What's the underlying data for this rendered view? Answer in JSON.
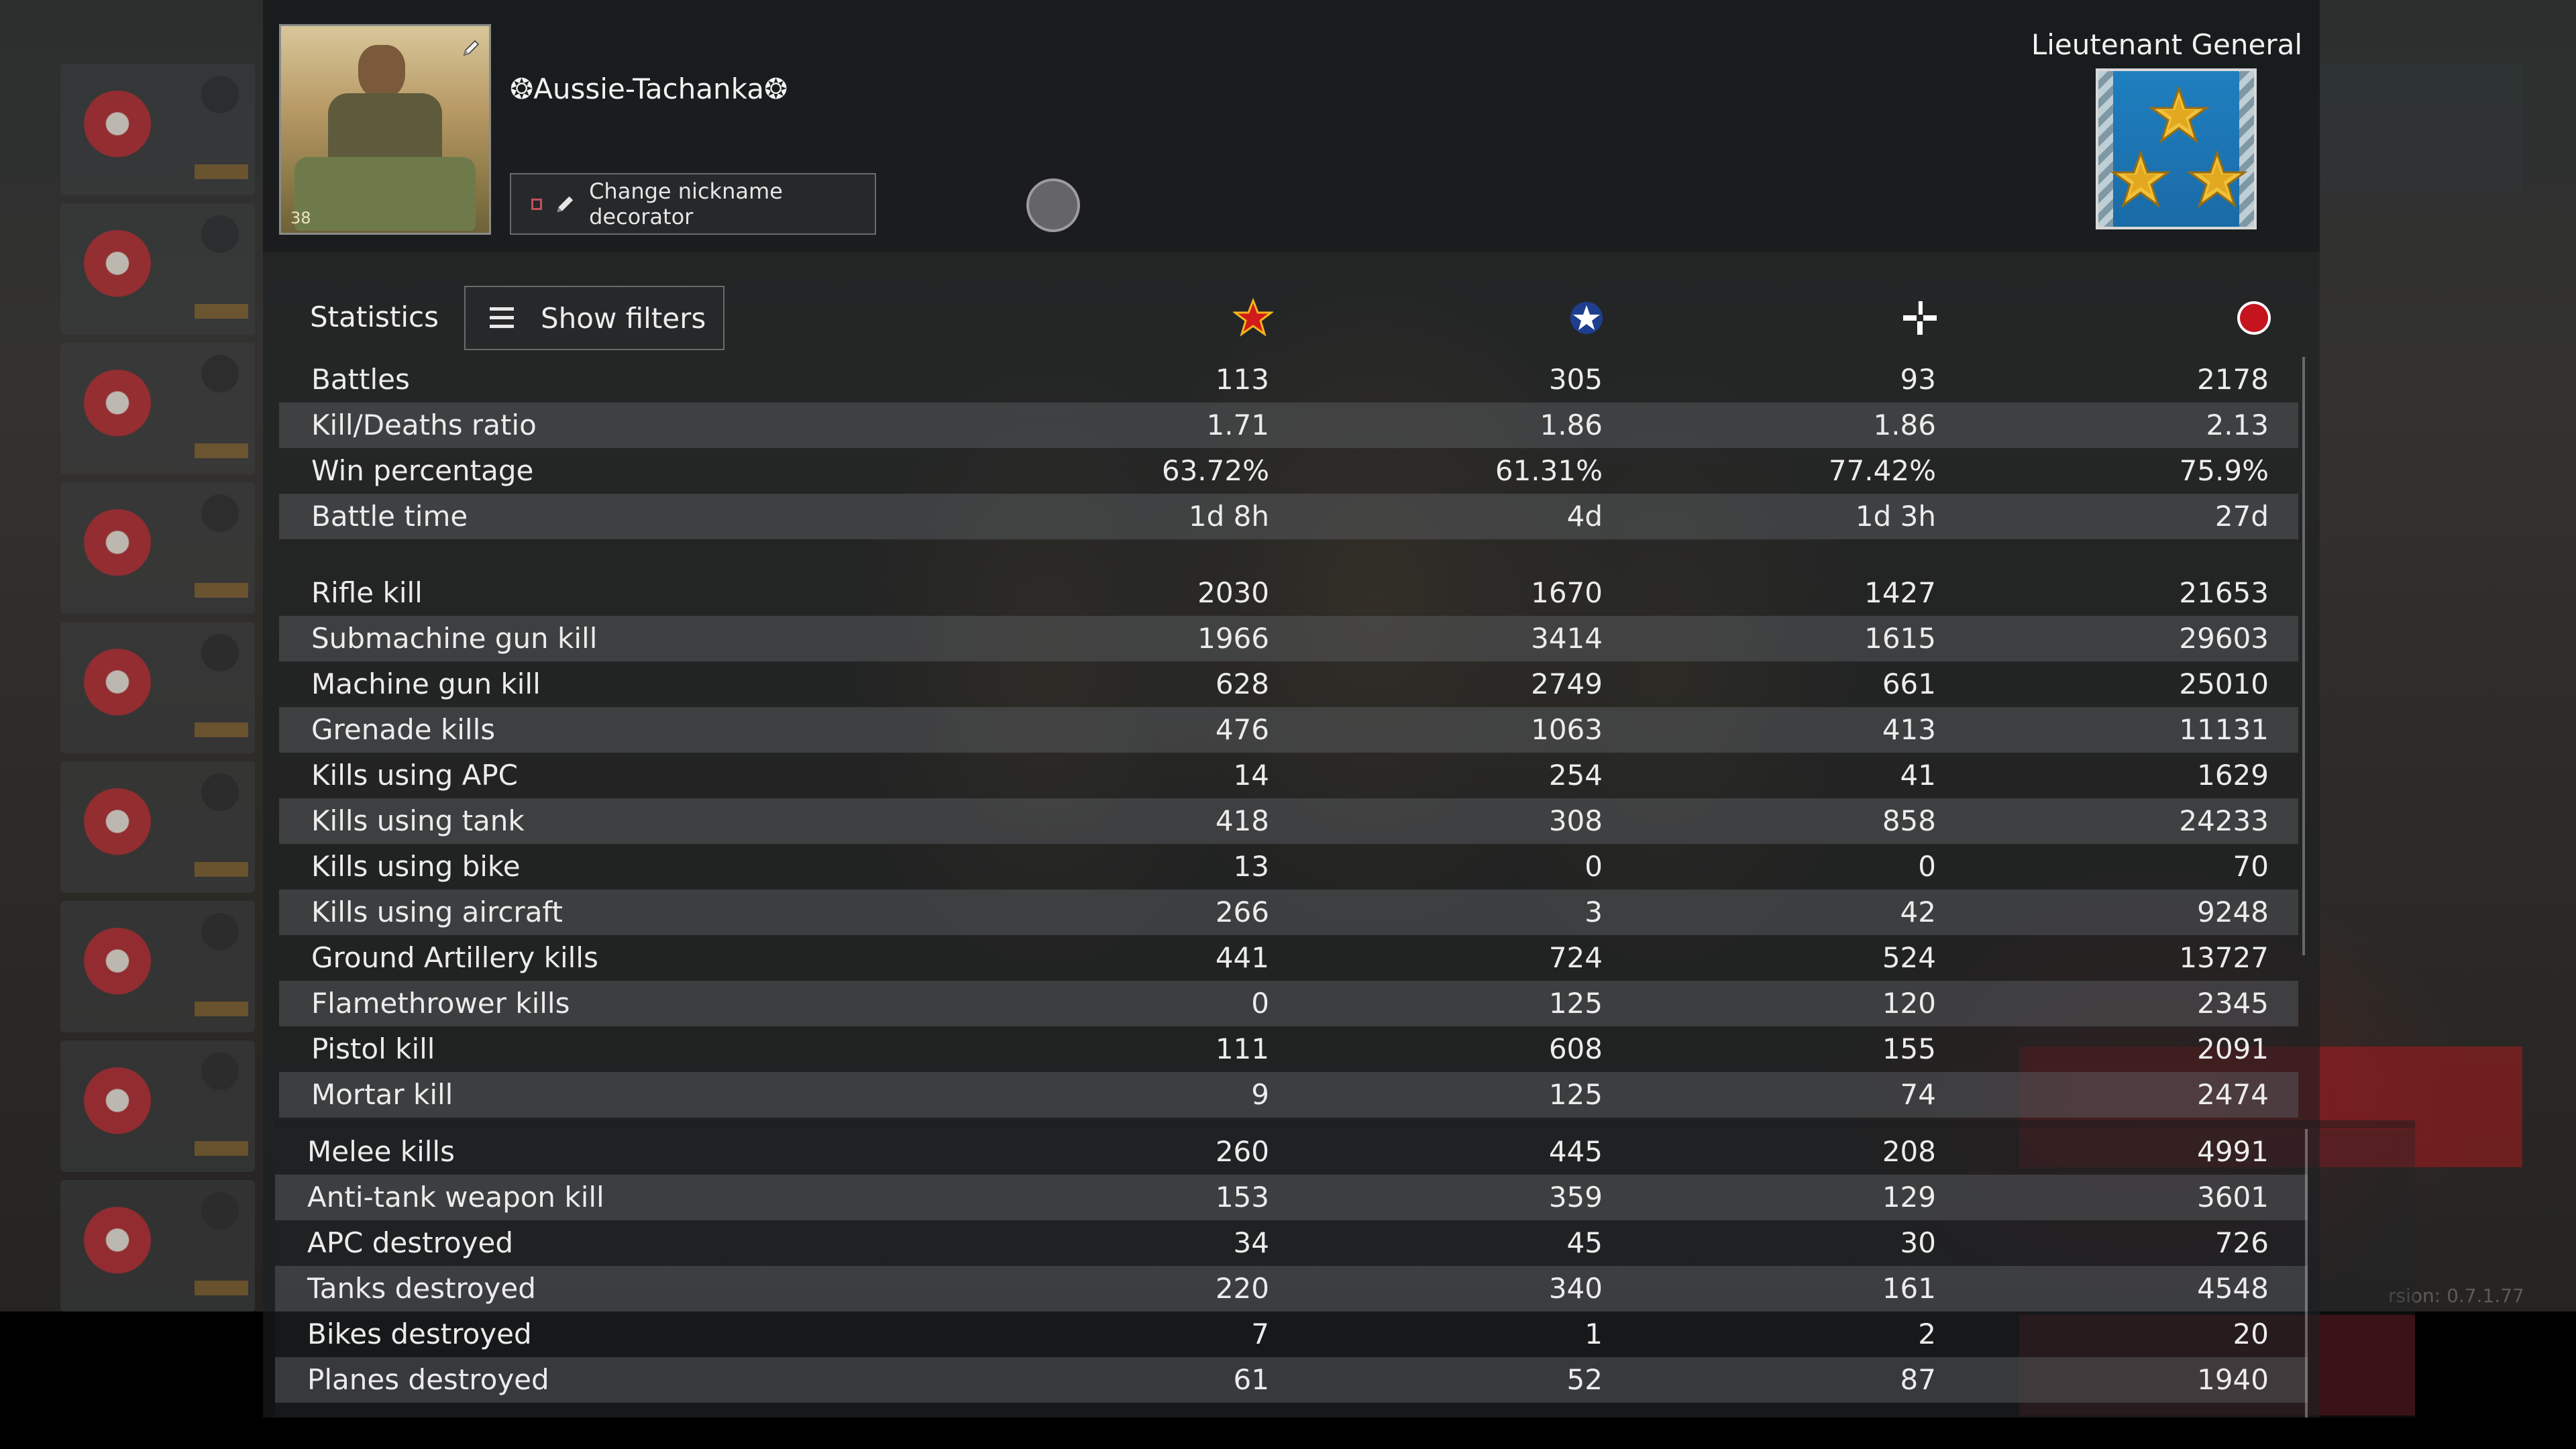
{
  "profile": {
    "nickname": "❂Aussie-Tachanka❂",
    "avatar_level": "38",
    "nickname_decorator_button": "Change nickname decorator",
    "rank_title": "Lieutenant General"
  },
  "toolbar": {
    "statistics_label": "Statistics",
    "filters_button": "Show filters"
  },
  "columns": [
    {
      "icon": "gold-star-icon",
      "color": "#e8b010"
    },
    {
      "icon": "blue-star-roundel-icon",
      "color": "#1e3f8f"
    },
    {
      "icon": "balkenkreuz-icon",
      "color": "#ffffff"
    },
    {
      "icon": "red-disc-icon",
      "color": "#c4141e"
    }
  ],
  "stats_group_1": [
    {
      "label": "Battles",
      "values": [
        "113",
        "305",
        "93",
        "2178"
      ]
    },
    {
      "label": "Kill/Deaths ratio",
      "values": [
        "1.71",
        "1.86",
        "1.86",
        "2.13"
      ]
    },
    {
      "label": "Win percentage",
      "values": [
        "63.72%",
        "61.31%",
        "77.42%",
        "75.9%"
      ]
    },
    {
      "label": "Battle time",
      "values": [
        "1d 8h",
        "4d",
        "1d 3h",
        "27d"
      ]
    }
  ],
  "stats_group_2": [
    {
      "label": "Rifle kill",
      "values": [
        "2030",
        "1670",
        "1427",
        "21653"
      ]
    },
    {
      "label": "Submachine gun kill",
      "values": [
        "1966",
        "3414",
        "1615",
        "29603"
      ]
    },
    {
      "label": "Machine gun kill",
      "values": [
        "628",
        "2749",
        "661",
        "25010"
      ]
    },
    {
      "label": "Grenade kills",
      "values": [
        "476",
        "1063",
        "413",
        "11131"
      ]
    },
    {
      "label": "Kills using APC",
      "values": [
        "14",
        "254",
        "41",
        "1629"
      ]
    },
    {
      "label": "Kills using tank",
      "values": [
        "418",
        "308",
        "858",
        "24233"
      ]
    },
    {
      "label": "Kills using bike",
      "values": [
        "13",
        "0",
        "0",
        "70"
      ]
    },
    {
      "label": "Kills using aircraft",
      "values": [
        "266",
        "3",
        "42",
        "9248"
      ]
    },
    {
      "label": "Ground Artillery kills",
      "values": [
        "441",
        "724",
        "524",
        "13727"
      ]
    },
    {
      "label": "Flamethrower kills",
      "values": [
        "0",
        "125",
        "120",
        "2345"
      ]
    },
    {
      "label": "Pistol kill",
      "values": [
        "111",
        "608",
        "155",
        "2091"
      ]
    },
    {
      "label": "Mortar kill",
      "values": [
        "9",
        "125",
        "74",
        "2474"
      ]
    }
  ],
  "stats_group_3": [
    {
      "label": "Melee kills",
      "values": [
        "260",
        "445",
        "208",
        "4991"
      ]
    },
    {
      "label": "Anti-tank weapon kill",
      "values": [
        "153",
        "359",
        "129",
        "3601"
      ]
    },
    {
      "label": "APC destroyed",
      "values": [
        "34",
        "45",
        "30",
        "726"
      ]
    },
    {
      "label": "Tanks destroyed",
      "values": [
        "220",
        "340",
        "161",
        "4548"
      ]
    },
    {
      "label": "Bikes destroyed",
      "values": [
        "7",
        "1",
        "2",
        "20"
      ]
    },
    {
      "label": "Planes destroyed",
      "values": [
        "61",
        "52",
        "87",
        "1940"
      ]
    }
  ],
  "background": {
    "version_text": "rsion: 0.7.1.77"
  },
  "colors": {
    "panel_bg": "#1c1e20",
    "row_alt": "#5f6265",
    "rank_blue": "#1a6aa6",
    "accent_red": "#c4505a"
  }
}
